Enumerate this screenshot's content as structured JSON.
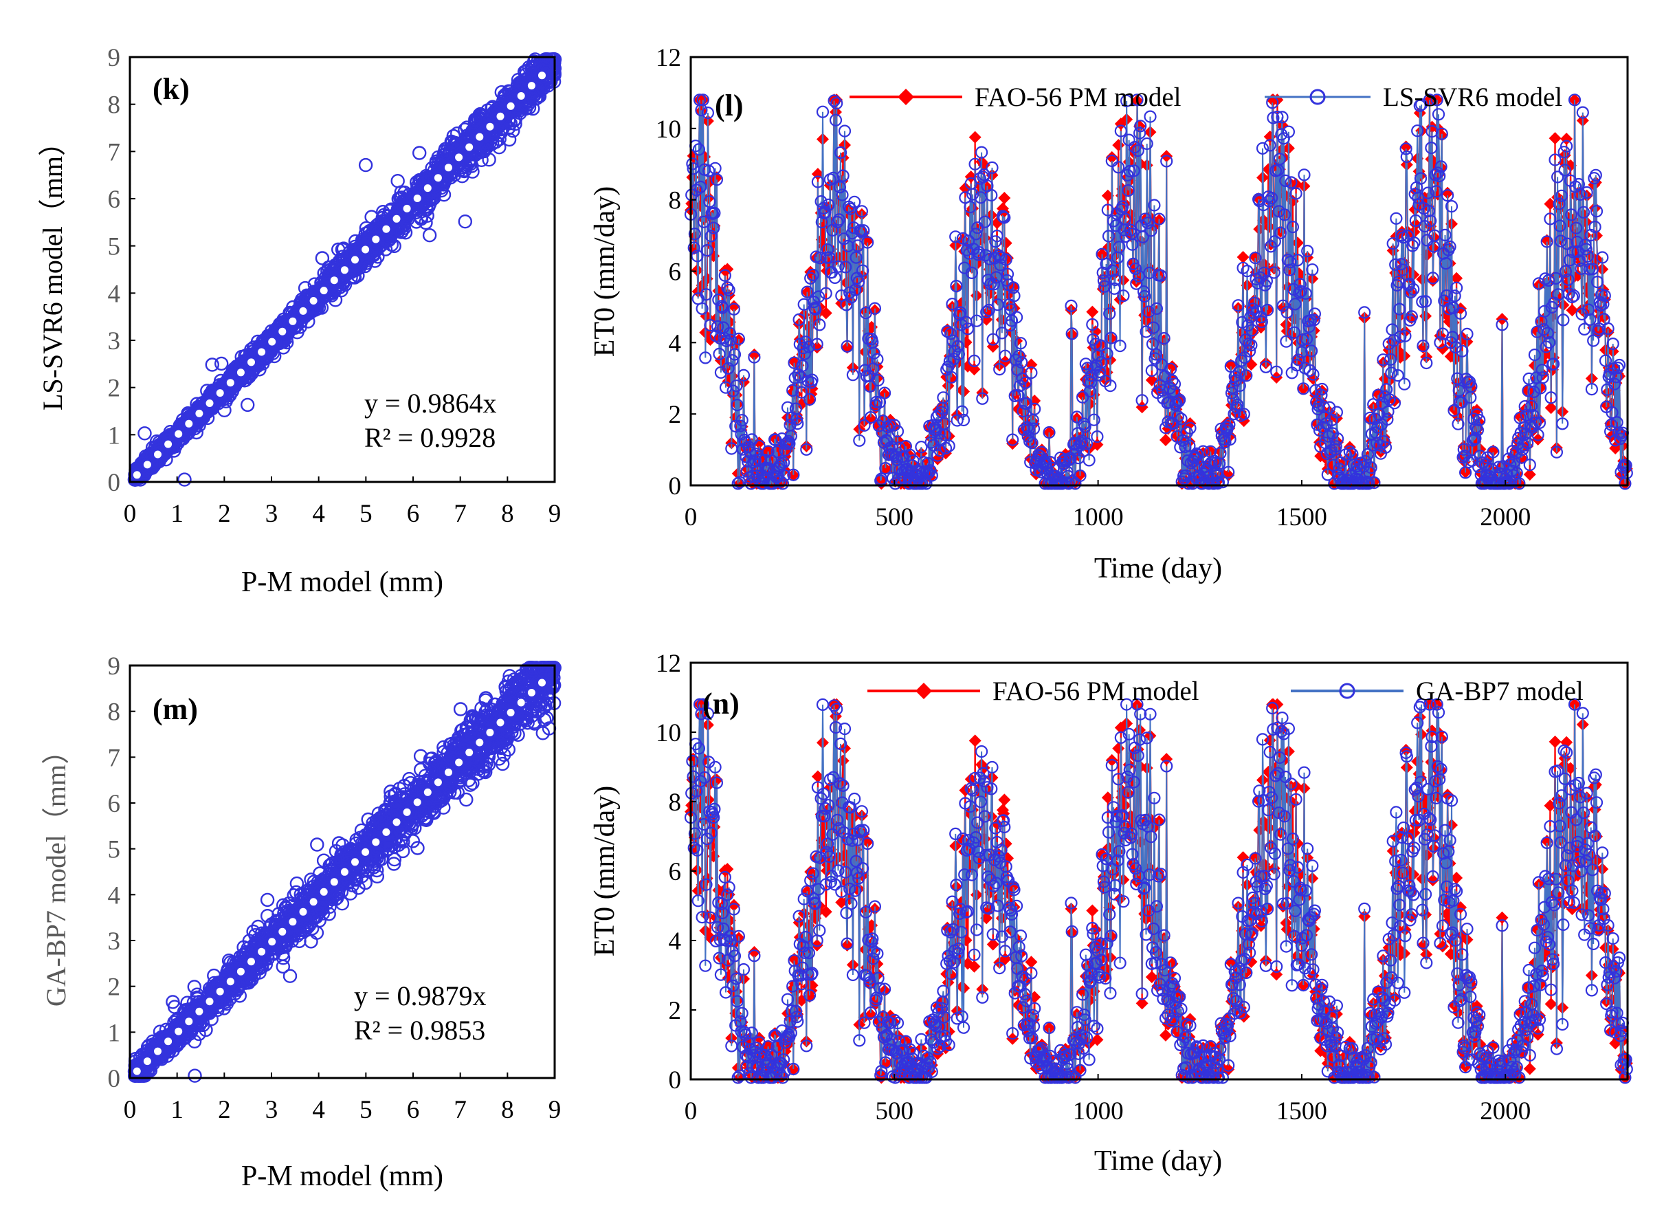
{
  "colors": {
    "pm": "#ff0000",
    "model": "#3333dd",
    "model_line": "#4472c4",
    "fit": "#ffffff",
    "frame": "#000000",
    "gray_text": "#595959"
  },
  "chart_data": [
    {
      "id": "k",
      "type": "scatter",
      "panel_label": "(k)",
      "xlabel": "P-M model (mm)",
      "ylabel": "LS-SVR6 model（mm）",
      "xlim": [
        0,
        9
      ],
      "ylim": [
        0,
        9
      ],
      "xticks": [
        "0",
        "1",
        "2",
        "3",
        "4",
        "5",
        "6",
        "7",
        "8",
        "9"
      ],
      "yticks": [
        "0",
        "1",
        "2",
        "3",
        "4",
        "5",
        "6",
        "7",
        "8",
        "9"
      ],
      "equation": "y = 0.9864x",
      "r2": "R² = 0.9928",
      "slope": 0.9864,
      "scatter_spread": 0.18,
      "n_points": 2300,
      "seed": 11
    },
    {
      "id": "l",
      "type": "line",
      "panel_label": "(l)",
      "xlabel": "Time (day)",
      "ylabel": "ET0 (mm/day)",
      "xlim": [
        0,
        2300
      ],
      "ylim": [
        0,
        12
      ],
      "xticks": [
        "0",
        "500",
        "1000",
        "1500",
        "2000"
      ],
      "yticks": [
        "0",
        "2",
        "4",
        "6",
        "8",
        "10",
        "12"
      ],
      "series": [
        {
          "name": "FAO-56 PM model",
          "marker": "diamond",
          "color": "#ff0000"
        },
        {
          "name": "LS-SVR6 model",
          "marker": "circle",
          "color": "#3333dd"
        }
      ],
      "n_days": 2300,
      "period_days": 365,
      "seasonal_peaks": [
        [
          10,
          8.2
        ],
        [
          360,
          7.8
        ],
        [
          720,
          7.0
        ],
        [
          1080,
          7.4
        ],
        [
          1440,
          7.6
        ],
        [
          1800,
          7.6
        ],
        [
          2170,
          7.2
        ]
      ],
      "model_spread": 0.35,
      "seed": 5
    },
    {
      "id": "m",
      "type": "scatter",
      "panel_label": "(m)",
      "xlabel": "P-M model (mm)",
      "ylabel": "GA-BP7 model（mm）",
      "xlim": [
        0,
        9
      ],
      "ylim": [
        0,
        9
      ],
      "xticks": [
        "0",
        "1",
        "2",
        "3",
        "4",
        "5",
        "6",
        "7",
        "8",
        "9"
      ],
      "yticks": [
        "0",
        "1",
        "2",
        "3",
        "4",
        "5",
        "6",
        "7",
        "8",
        "9"
      ],
      "equation": "y = 0.9879x",
      "r2": "R² = 0.9853",
      "slope": 0.9879,
      "scatter_spread": 0.28,
      "n_points": 2300,
      "seed": 23
    },
    {
      "id": "n",
      "type": "line",
      "panel_label": "(n)",
      "xlabel": "Time (day)",
      "ylabel": "ET0 (mm/day)",
      "xlim": [
        0,
        2300
      ],
      "ylim": [
        0,
        12
      ],
      "xticks": [
        "0",
        "500",
        "1000",
        "1500",
        "2000"
      ],
      "yticks": [
        "0",
        "2",
        "4",
        "6",
        "8",
        "10",
        "12"
      ],
      "series": [
        {
          "name": "FAO-56 PM model",
          "marker": "diamond",
          "color": "#ff0000"
        },
        {
          "name": "GA-BP7 model",
          "marker": "circle",
          "color": "#3333dd"
        }
      ],
      "n_days": 2300,
      "period_days": 365,
      "seasonal_peaks": [
        [
          10,
          8.2
        ],
        [
          360,
          7.8
        ],
        [
          720,
          7.0
        ],
        [
          1080,
          7.4
        ],
        [
          1440,
          7.6
        ],
        [
          1800,
          7.6
        ],
        [
          2170,
          7.2
        ]
      ],
      "model_spread": 0.5,
      "seed": 5
    }
  ]
}
